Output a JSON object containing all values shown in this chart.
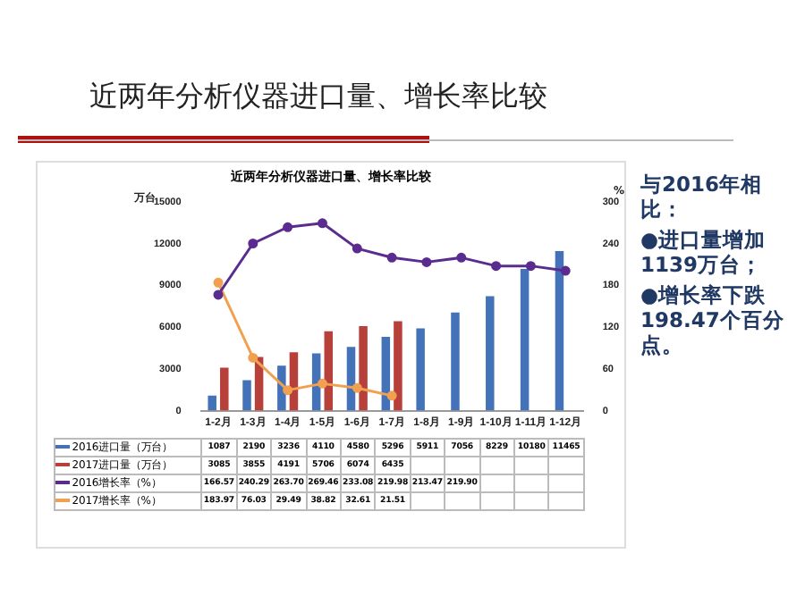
{
  "chart_data": {
    "type": "bar",
    "title": "近两年分析仪器进口量、增长率比较",
    "subtitle": "近两年分析仪器进口量、增长率比较",
    "ylabel": "万台",
    "y2label": "%",
    "categories": [
      "1-2月",
      "1-3月",
      "1-4月",
      "1-5月",
      "1-6月",
      "1-7月",
      "1-8月",
      "1-9月",
      "1-10月",
      "1-11月",
      "1-12月"
    ],
    "series": [
      {
        "name": "2016进口量（万台）",
        "type": "bar",
        "color": "#4472b8",
        "values": [
          1087,
          2190,
          3236,
          4110,
          4580,
          5296,
          5911,
          7056,
          8229,
          10180,
          11465
        ]
      },
      {
        "name": "2017进口量（万台）",
        "type": "bar",
        "color": "#b8403a",
        "values": [
          3085,
          3855,
          4191,
          5706,
          6074,
          6435,
          null,
          null,
          null,
          null,
          null
        ]
      },
      {
        "name": "2016增长率（%）",
        "type": "line",
        "axis": "y2",
        "color": "#5b2c8f",
        "values": [
          166.57,
          240.29,
          263.7,
          269.46,
          233.08,
          219.98,
          213.47,
          219.9,
          208,
          208,
          201
        ],
        "value_labels": [
          "166.57",
          "240.29",
          "263.70",
          "269.46",
          "233.08",
          "219.98",
          "213.47",
          "219.90",
          null,
          null,
          null
        ]
      },
      {
        "name": "2017增长率（%）",
        "type": "line",
        "axis": "y2",
        "color": "#f0a050",
        "values": [
          183.97,
          76.03,
          29.49,
          38.82,
          32.61,
          21.51,
          null,
          null,
          null,
          null,
          null
        ]
      }
    ],
    "ylim": [
      0,
      15000
    ],
    "yticks": [
      0,
      3000,
      6000,
      9000,
      12000,
      15000
    ],
    "y2lim": [
      0,
      300
    ],
    "y2ticks": [
      0,
      60,
      120,
      180,
      240,
      300
    ],
    "marker": "circle",
    "legend": "bottom",
    "data_labels": true,
    "annotations": [
      "与2016年相比：",
      "●进口量增加1139万台；",
      "●增长率下跌198.47个百分点。"
    ]
  }
}
